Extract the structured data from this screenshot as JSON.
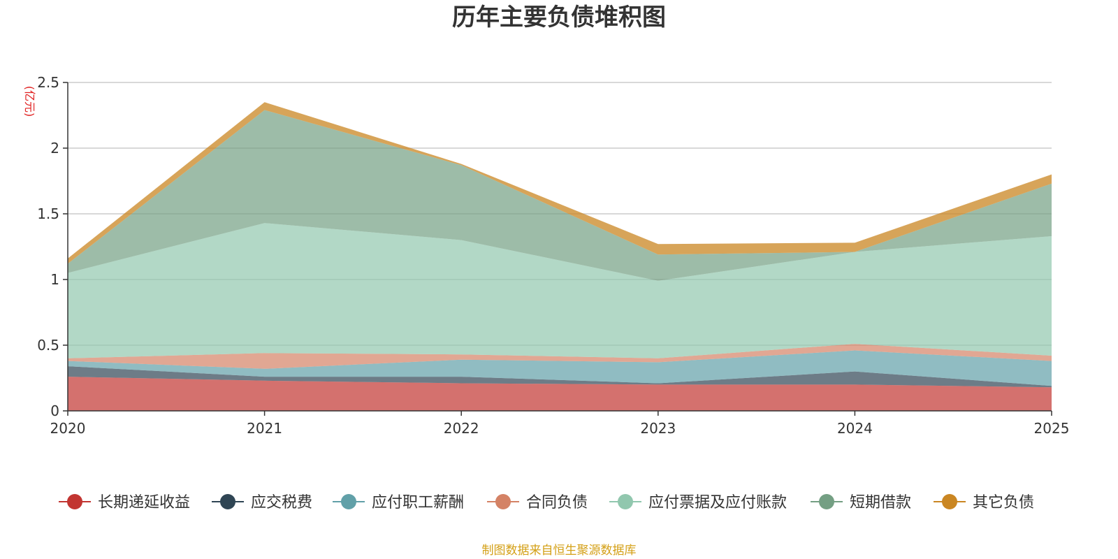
{
  "chart_data": {
    "type": "area",
    "stacked": true,
    "title": "历年主要负债堆积图",
    "ylabel": "(亿元)",
    "xlabel": "",
    "x": [
      "2020",
      "2021",
      "2022",
      "2023",
      "2024",
      "2025"
    ],
    "ylim": [
      0,
      2.5
    ],
    "yticks": [
      "0",
      "0.5",
      "1",
      "1.5",
      "2",
      "2.5"
    ],
    "grid": true,
    "legend_position": "bottom",
    "series": [
      {
        "name": "长期递延收益",
        "color": "#c23531",
        "values": [
          0.26,
          0.23,
          0.21,
          0.2,
          0.2,
          0.18
        ]
      },
      {
        "name": "应交税费",
        "color": "#2f4554",
        "values": [
          0.08,
          0.03,
          0.05,
          0.01,
          0.1,
          0.01
        ]
      },
      {
        "name": "应付职工薪酬",
        "color": "#61a0a8",
        "values": [
          0.04,
          0.06,
          0.13,
          0.16,
          0.16,
          0.19
        ]
      },
      {
        "name": "合同负债",
        "color": "#d48265",
        "values": [
          0.02,
          0.12,
          0.04,
          0.03,
          0.05,
          0.04
        ]
      },
      {
        "name": "应付票据及应付账款",
        "color": "#91c7ae",
        "values": [
          0.65,
          0.99,
          0.87,
          0.59,
          0.7,
          0.91
        ]
      },
      {
        "name": "短期借款",
        "color": "#749f83",
        "values": [
          0.07,
          0.86,
          0.57,
          0.2,
          0.0,
          0.4
        ]
      },
      {
        "name": "其它负债",
        "color": "#ca8622",
        "values": [
          0.04,
          0.06,
          0.01,
          0.08,
          0.07,
          0.07
        ]
      }
    ],
    "source_note": "制图数据来自恒生聚源数据库"
  }
}
